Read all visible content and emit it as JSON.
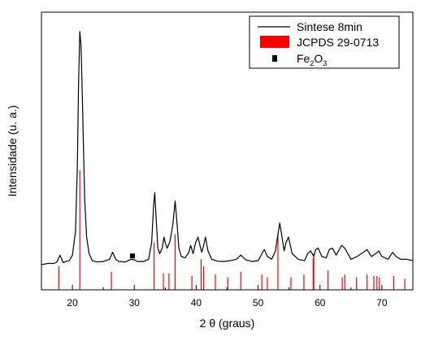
{
  "chart_data": {
    "type": "line",
    "xlabel": "2 θ (graus)",
    "ylabel": "Intensidade (u. a.)",
    "xlim": [
      15,
      75
    ],
    "x_ticks": [
      20,
      30,
      40,
      50,
      60,
      70
    ],
    "y_ticks_labeled": false,
    "legend_position": "top-right",
    "colors": {
      "pattern": "#000000",
      "reference": "#ff0000",
      "marker": "#000000"
    },
    "series": [
      {
        "name": "Sintese 8min",
        "style": "line",
        "x": [
          15.0,
          16.0,
          17.0,
          17.5,
          18.0,
          18.5,
          19.0,
          19.5,
          20.0,
          20.5,
          20.8,
          21.0,
          21.2,
          21.4,
          21.6,
          21.8,
          22.0,
          22.3,
          22.7,
          23.2,
          24.0,
          25.0,
          26.0,
          26.5,
          27.0,
          27.5,
          28.5,
          29.0,
          29.5,
          30.0,
          30.5,
          31.5,
          32.3,
          32.8,
          33.1,
          33.3,
          33.5,
          33.8,
          34.1,
          34.5,
          34.8,
          35.0,
          35.3,
          35.7,
          36.2,
          36.6,
          36.9,
          37.2,
          37.6,
          38.2,
          38.8,
          39.1,
          39.5,
          39.9,
          40.3,
          40.6,
          40.9,
          41.2,
          41.5,
          41.9,
          42.5,
          43.5,
          44.5,
          45.5,
          46.5,
          47.2,
          48.0,
          49.0,
          50.0,
          50.6,
          51.0,
          51.5,
          52.2,
          52.8,
          53.2,
          53.5,
          53.8,
          54.2,
          54.5,
          54.9,
          55.5,
          56.5,
          57.5,
          58.0,
          58.5,
          59.0,
          59.3,
          59.7,
          60.3,
          61.0,
          61.5,
          62.0,
          62.6,
          63.0,
          63.5,
          64.0,
          64.5,
          65.0,
          66.0,
          67.0,
          67.6,
          68.3,
          69.0,
          69.5,
          70.0,
          71.0,
          71.7,
          72.3,
          73.0,
          74.0,
          75.0
        ],
        "y": [
          9.0,
          9.5,
          9.5,
          10.0,
          12.5,
          9.8,
          10.2,
          10.5,
          12.5,
          21.0,
          45.0,
          75.0,
          93.0,
          88.0,
          70.0,
          50.0,
          32.0,
          19.0,
          13.0,
          10.5,
          10.0,
          10.2,
          11.0,
          13.5,
          11.0,
          10.2,
          10.0,
          10.5,
          11.0,
          10.8,
          10.2,
          10.2,
          11.0,
          17.0,
          30.0,
          35.0,
          27.0,
          15.0,
          13.0,
          15.0,
          19.0,
          17.0,
          15.0,
          17.0,
          23.0,
          32.0,
          24.0,
          15.0,
          12.0,
          11.5,
          13.5,
          16.0,
          13.0,
          17.0,
          19.0,
          16.0,
          13.5,
          16.0,
          19.0,
          14.0,
          11.0,
          10.3,
          10.2,
          10.5,
          11.0,
          12.5,
          10.8,
          10.2,
          10.5,
          13.0,
          14.5,
          12.0,
          11.0,
          14.0,
          20.0,
          24.0,
          20.0,
          14.0,
          17.0,
          19.0,
          13.0,
          11.0,
          10.5,
          13.0,
          14.0,
          12.0,
          14.5,
          15.0,
          12.0,
          11.5,
          14.5,
          15.0,
          12.5,
          14.0,
          16.0,
          15.0,
          13.0,
          11.0,
          12.0,
          13.5,
          14.5,
          12.0,
          13.0,
          14.0,
          12.0,
          11.0,
          13.5,
          12.0,
          11.0,
          11.0,
          10.5
        ]
      },
      {
        "name": "JCPDS 29-0713",
        "style": "stick",
        "x": [
          17.8,
          21.2,
          26.3,
          33.2,
          34.7,
          35.6,
          36.6,
          39.3,
          40.8,
          41.2,
          43.1,
          45.1,
          47.2,
          50.6,
          51.5,
          53.2,
          55.3,
          57.4,
          58.9,
          59.0,
          61.3,
          63.6,
          64.0,
          65.9,
          67.6,
          68.7,
          69.2,
          69.6,
          71.9,
          73.7
        ],
        "y": [
          8.5,
          43.0,
          6.5,
          17.0,
          6.0,
          6.0,
          20.0,
          5.0,
          11.0,
          8.5,
          5.5,
          4.5,
          6.5,
          5.5,
          4.5,
          20.0,
          4.5,
          5.5,
          11.5,
          13.0,
          7.0,
          4.5,
          5.5,
          4.5,
          5.5,
          5.0,
          5.0,
          4.5,
          5.0,
          4.0
        ]
      },
      {
        "name": "Fe2O3",
        "style": "marker",
        "x": [
          29.7
        ],
        "y": [
          12.2
        ]
      }
    ]
  },
  "legend": {
    "items": [
      {
        "label": "Sintese 8min"
      },
      {
        "label": "JCPDS 29-0713"
      },
      {
        "label_main": "Fe",
        "sub1": "2",
        "mid": "O",
        "sub2": "3"
      }
    ]
  }
}
